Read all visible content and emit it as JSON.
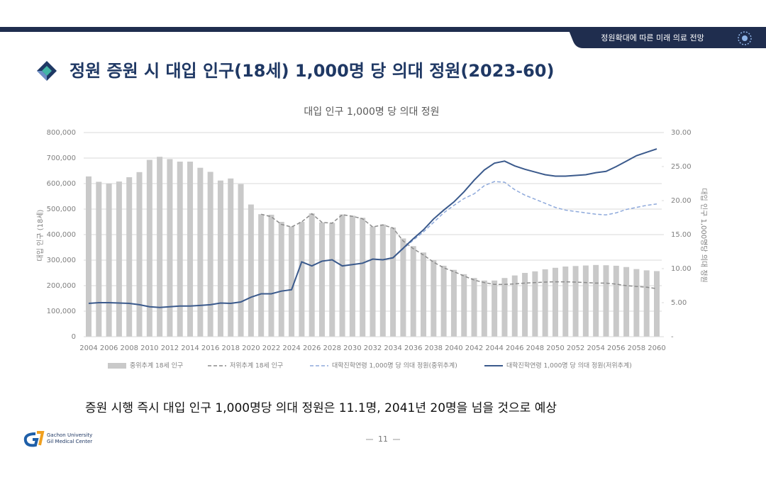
{
  "header": {
    "section": "정원확대에 따른 미래 의료 전망",
    "title": "정원 증원 시 대입 인구(18세) 1,000명 당 의대 정원(2023-60)"
  },
  "chart_data": {
    "type": "bar_line",
    "title": "대입 인구 1,000명 당 의대 정원",
    "y_label": "대입 인구 (18세)",
    "y2_label": "대입 인구 1,000명당 의대 정원",
    "categories": [
      "2004",
      null,
      "2006",
      null,
      "2008",
      null,
      "2010",
      null,
      "2012",
      null,
      "2014",
      null,
      "2016",
      null,
      "2018",
      null,
      "2020",
      null,
      "2022",
      null,
      "2024",
      null,
      "2026",
      null,
      "2028",
      null,
      "2030",
      null,
      "2032",
      null,
      "2034",
      null,
      "2036",
      null,
      "2038",
      null,
      "2040",
      null,
      "2042",
      null,
      "2044",
      null,
      "2046",
      null,
      "2048",
      null,
      "2050",
      null,
      "2052",
      null,
      "2054",
      null,
      "2056",
      null,
      "2058",
      null,
      "2060"
    ],
    "ylim": [
      0,
      800000
    ],
    "yticks": [
      0,
      {
        "value": 100000,
        "label": "100,000"
      },
      {
        "value": 200000,
        "label": "200,000"
      },
      {
        "value": 300000,
        "label": "300,000"
      },
      {
        "value": 400000,
        "label": "400,000"
      },
      {
        "value": 500000,
        "label": "500,000"
      },
      {
        "value": 600000,
        "label": "600,000"
      },
      {
        "value": 700000,
        "label": "700,000"
      },
      {
        "value": 800000,
        "label": "800,000"
      }
    ],
    "y2lim": [
      0,
      30
    ],
    "y2ticks": [
      {
        "value": 0,
        "label": "-"
      },
      {
        "value": 5,
        "label": "5.00"
      },
      {
        "value": 10,
        "label": "10.00"
      },
      {
        "value": 15,
        "label": "15.00"
      },
      {
        "value": 20,
        "label": "20.00"
      },
      {
        "value": 25,
        "label": "25.00"
      },
      {
        "value": 30,
        "label": "30.00"
      }
    ],
    "grid": true,
    "legend": "bottom",
    "series": [
      {
        "name": "중위추계 18세 인구",
        "kind": "bar",
        "color": "#c9c9c9",
        "values": [
          628000,
          607000,
          600000,
          608000,
          625000,
          645000,
          693000,
          705000,
          696000,
          686000,
          686000,
          662000,
          646000,
          612000,
          620000,
          598000,
          518000,
          480000,
          478000,
          450000,
          432000,
          450000,
          483000,
          448000,
          446000,
          479000,
          474000,
          466000,
          432000,
          440000,
          428000,
          385000,
          355000,
          330000,
          300000,
          278000,
          262000,
          245000,
          230000,
          220000,
          220000,
          230000,
          240000,
          250000,
          256000,
          264000,
          270000,
          275000,
          277000,
          279000,
          281000,
          280000,
          278000,
          273000,
          265000,
          260000,
          257000
        ]
      },
      {
        "name": "저위추계 18세 인구",
        "kind": "line",
        "dash": true,
        "color": "#8c8c8c",
        "values": [
          null,
          null,
          null,
          null,
          null,
          null,
          null,
          null,
          null,
          null,
          null,
          null,
          null,
          null,
          null,
          null,
          null,
          480000,
          470000,
          440000,
          430000,
          450000,
          482000,
          448000,
          445000,
          478000,
          472000,
          462000,
          430000,
          438000,
          426000,
          375000,
          345000,
          320000,
          292000,
          270000,
          255000,
          238000,
          222000,
          212000,
          205000,
          205000,
          207000,
          210000,
          212000,
          214000,
          215000,
          215000,
          214000,
          212000,
          210000,
          210000,
          206000,
          200000,
          197000,
          194000,
          188000
        ]
      },
      {
        "name": "대학진학연령 1,000명 당 의대 정원(중위추계)",
        "kind": "line",
        "dash": true,
        "axis": "y2",
        "color": "#8ea9db",
        "values": [
          null,
          null,
          null,
          null,
          null,
          null,
          null,
          null,
          null,
          null,
          null,
          null,
          null,
          null,
          null,
          null,
          null,
          null,
          null,
          null,
          null,
          null,
          null,
          null,
          null,
          null,
          null,
          null,
          null,
          null,
          11.6,
          12.9,
          14.2,
          15.4,
          16.8,
          18.2,
          19.3,
          20.3,
          21.0,
          22.2,
          22.8,
          22.7,
          21.6,
          20.8,
          20.2,
          19.6,
          19.0,
          18.6,
          18.4,
          18.2,
          18.0,
          17.9,
          18.2,
          18.7,
          19.0,
          19.3,
          19.5
        ]
      },
      {
        "name": "대학진학연령 1,000명 당 의대 정원(저위추계)",
        "kind": "line",
        "dash": false,
        "axis": "y2",
        "color": "#3b5a8c",
        "values": [
          4.9,
          5.0,
          5.0,
          4.95,
          4.9,
          4.7,
          4.4,
          4.3,
          4.4,
          4.5,
          4.5,
          4.6,
          4.7,
          4.95,
          4.9,
          5.1,
          5.8,
          6.3,
          6.3,
          6.7,
          6.9,
          11.0,
          10.4,
          11.1,
          11.3,
          10.4,
          10.6,
          10.8,
          11.4,
          11.3,
          11.6,
          13.0,
          14.4,
          15.7,
          17.3,
          18.6,
          19.8,
          21.3,
          23.0,
          24.5,
          25.5,
          25.8,
          25.1,
          24.6,
          24.2,
          23.8,
          23.6,
          23.6,
          23.7,
          23.8,
          24.1,
          24.3,
          25.0,
          25.8,
          26.6,
          27.1,
          27.6
        ]
      }
    ]
  },
  "conclusion": "증원 시행 즉시 대입 인구 1,000명당 의대 정원은 11.1명, 2041년 20명을 넘을 것으로 예상",
  "footer": {
    "org": "Gachon University",
    "sub": "Gil Medical Center",
    "page": "11"
  }
}
